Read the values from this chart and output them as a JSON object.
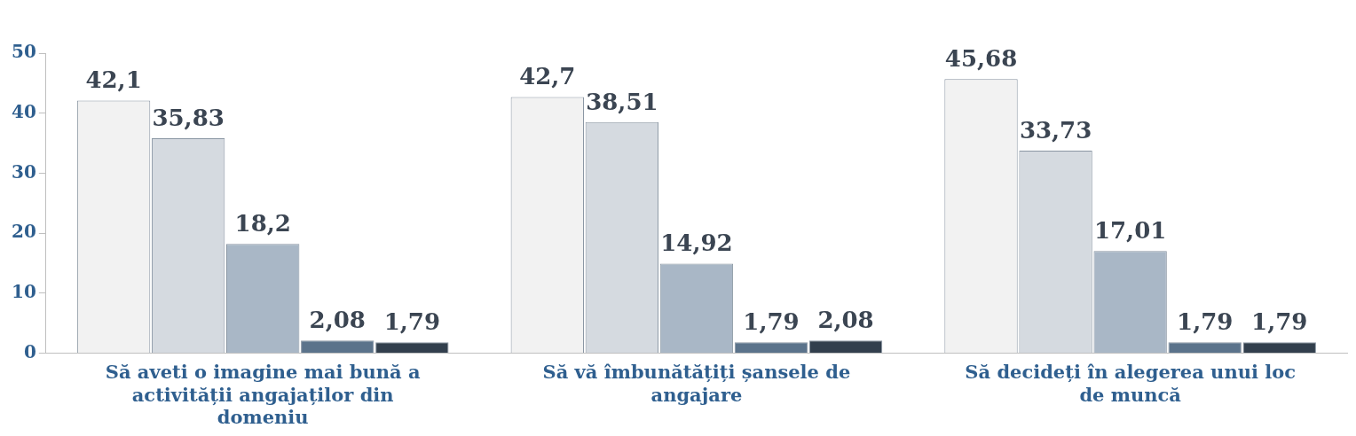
{
  "chart_data": {
    "type": "bar",
    "categories": [
      "Să aveti o imagine mai bună a activității angajaților din domeniu",
      "Să vă îmbunătățiți șansele de angajare",
      "Să decideți în alegerea unui loc de muncă"
    ],
    "series": [
      {
        "color": "#f2f2f2",
        "values": [
          42.1,
          42.7,
          45.68
        ],
        "value_labels": [
          "42,1",
          "42,7",
          "45,68"
        ]
      },
      {
        "color": "#d5dae0",
        "values": [
          35.83,
          38.51,
          33.73
        ],
        "value_labels": [
          "35,83",
          "38,51",
          "33,73"
        ]
      },
      {
        "color": "#a9b7c6",
        "values": [
          18.2,
          14.92,
          17.01
        ],
        "value_labels": [
          "18,2",
          "14,92",
          "17,01"
        ]
      },
      {
        "color": "#5b738b",
        "values": [
          2.08,
          1.79,
          1.79
        ],
        "value_labels": [
          "2,08",
          "1,79",
          "1,79"
        ]
      },
      {
        "color": "#323f4d",
        "values": [
          1.79,
          2.08,
          1.79
        ],
        "value_labels": [
          "1,79",
          "2,08",
          "1,79"
        ]
      }
    ],
    "ylim": [
      0,
      50
    ],
    "yticks": [
      0,
      10,
      20,
      30,
      40,
      50
    ],
    "grid": false,
    "legend": false
  }
}
